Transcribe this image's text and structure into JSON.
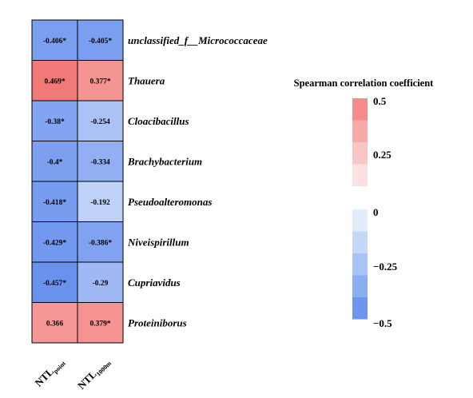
{
  "chart_data": {
    "type": "heatmap",
    "rows": [
      "unclassified_f__Micrococcaceae",
      "Thauera",
      "Cloacibacillus",
      "Brachybacterium",
      "Pseudoalteromonas",
      "Niveispirillum",
      "Cupriavidus",
      "Proteiniborus"
    ],
    "columns": [
      {
        "main": "NTL",
        "sub": "point"
      },
      {
        "main": "NTL",
        "sub": "1000m"
      }
    ],
    "values": [
      [
        -0.406,
        -0.405
      ],
      [
        0.469,
        0.377
      ],
      [
        -0.38,
        -0.254
      ],
      [
        -0.4,
        -0.334
      ],
      [
        -0.418,
        -0.192
      ],
      [
        -0.429,
        -0.386
      ],
      [
        -0.457,
        -0.29
      ],
      [
        0.366,
        0.379
      ]
    ],
    "cell_labels": [
      [
        "-0.406*",
        "-0.405*"
      ],
      [
        "0.469*",
        "0.377*"
      ],
      [
        "-0.38*",
        "-0.254"
      ],
      [
        "-0.4*",
        "-0.334"
      ],
      [
        "-0.418*",
        "-0.192"
      ],
      [
        "-0.429*",
        "-0.386*"
      ],
      [
        "-0.457*",
        "-0.29"
      ],
      [
        "0.366",
        "0.379*"
      ]
    ],
    "legend": {
      "title": "Spearman correlation coefficient",
      "positive_ticks": [
        "0.5",
        "0.25"
      ],
      "negative_ticks": [
        "0",
        "−0.25",
        "−0.5"
      ],
      "positive_colors": [
        "#f58b8b",
        "#f7a9a9",
        "#f9c6c6",
        "#fbe1e1"
      ],
      "negative_colors": [
        "#e2ecfb",
        "#c5d8f8",
        "#a8c3f5",
        "#8badf2",
        "#6d96ee"
      ]
    },
    "colors": {
      "max_pos": "#f0716f",
      "max_neg": "#5b87ec",
      "zero": "#ffffff"
    },
    "vmin": -0.5,
    "vmax": 0.5
  }
}
